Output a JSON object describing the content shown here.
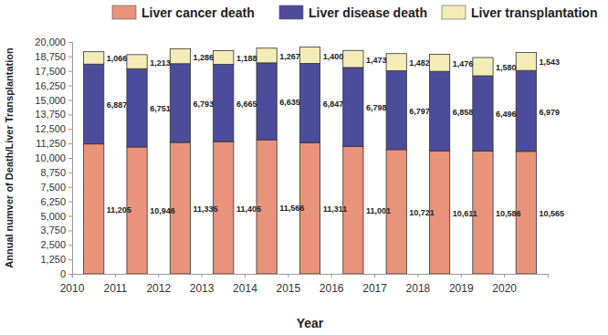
{
  "chart_data": {
    "type": "bar",
    "stacked": true,
    "data_labels": true,
    "grid": false,
    "legend": "top",
    "x_label": "Year",
    "y_label": "Annual numver of Death/Liver Transplantation",
    "categories": [
      "2010",
      "2011",
      "2012",
      "2013",
      "2014",
      "2015",
      "2016",
      "2017",
      "2018",
      "2019",
      "2020"
    ],
    "ylim": [
      0,
      20000
    ],
    "yticks": [
      0,
      {
        "value": 1250,
        "label": "1,250"
      },
      {
        "value": 2500,
        "label": "2,500"
      },
      {
        "value": 3750,
        "label": "3,750"
      },
      {
        "value": 5000,
        "label": "5,000"
      },
      {
        "value": 6250,
        "label": "6,250"
      },
      {
        "value": 7500,
        "label": "7,500"
      },
      {
        "value": 8750,
        "label": "8,750"
      },
      {
        "value": 10000,
        "label": "10,000"
      },
      {
        "value": 11250,
        "label": "11,250"
      },
      {
        "value": 12500,
        "label": "12,500"
      },
      {
        "value": 13750,
        "label": "13,750"
      },
      {
        "value": 15000,
        "label": "15,000"
      },
      {
        "value": 16250,
        "label": "16,250"
      },
      {
        "value": 17500,
        "label": "17,500"
      },
      {
        "value": 18750,
        "label": "18,750"
      },
      {
        "value": 20000,
        "label": "20,000"
      }
    ],
    "series": [
      {
        "name": "Liver cancer death",
        "color": "#e9937a",
        "values": [
          11205,
          10946,
          11335,
          11405,
          11566,
          11311,
          11001,
          10721,
          10611,
          10586,
          10565
        ],
        "value_labels": [
          "11,205",
          "10,946",
          "11,335",
          "11,405",
          "11,566",
          "11,311",
          "11,001",
          "10,721",
          "10,611",
          "10,586",
          "10,565"
        ]
      },
      {
        "name": "Liver disease death",
        "color": "#4c4c9c",
        "values": [
          6887,
          6751,
          6793,
          6665,
          6635,
          6847,
          6798,
          6797,
          6858,
          6496,
          6979
        ],
        "value_labels": [
          "6,887",
          "6,751",
          "6,793",
          "6,665",
          "6,635",
          "6,847",
          "6,798",
          "6,797",
          "6,858",
          "6,496",
          "6,979"
        ]
      },
      {
        "name": "Liver transplantation",
        "color": "#f4ebb6",
        "values": [
          1066,
          1213,
          1286,
          1188,
          1267,
          1400,
          1473,
          1482,
          1476,
          1580,
          1543
        ],
        "value_labels": [
          "1,066",
          "1,213",
          "1,286",
          "1,188",
          "1,267",
          "1,400",
          "1,473",
          "1,482",
          "1,476",
          "1,580",
          "1,543"
        ]
      }
    ]
  }
}
